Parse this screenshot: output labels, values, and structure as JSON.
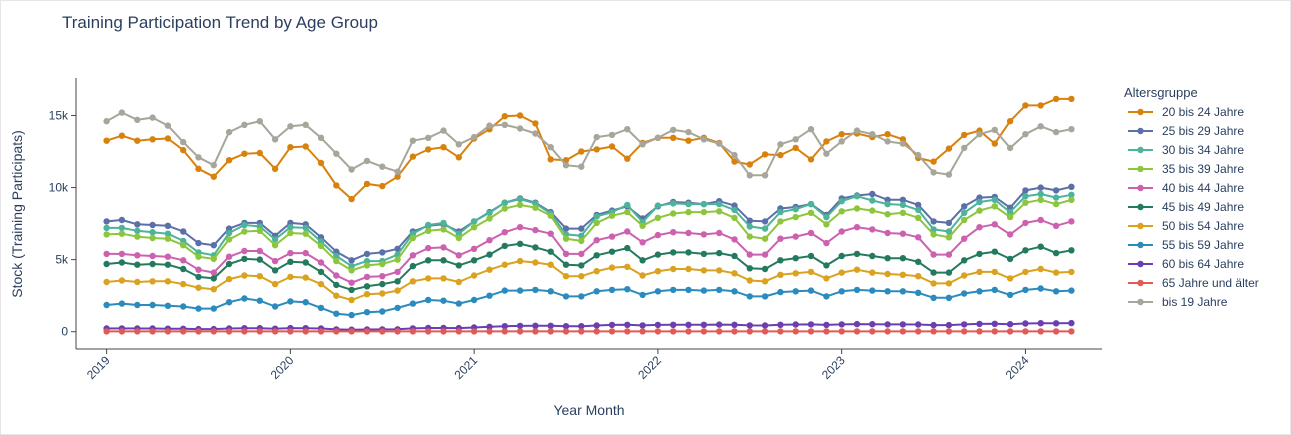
{
  "chart_data": {
    "type": "line",
    "title": "Training Participation Trend by Age Group",
    "xlabel": "Year Month",
    "ylabel": "Stock (Training Participats)",
    "ylim": [
      -1200,
      17600
    ],
    "yticks": [
      0,
      5000,
      10000,
      15000
    ],
    "ytick_labels": [
      "0",
      "5k",
      "10k",
      "15k"
    ],
    "xticks": [
      "2019-01",
      "2020-01",
      "2021-01",
      "2022-01",
      "2023-01",
      "2024-01"
    ],
    "xtick_labels": [
      "2019",
      "2020",
      "2021",
      "2022",
      "2023",
      "2024"
    ],
    "xrange": [
      "2018-11",
      "2024-06"
    ],
    "grid": false,
    "legend_title": "Altersgruppe",
    "legend_position": "right",
    "x": [
      "2019-01",
      "2019-02",
      "2019-03",
      "2019-04",
      "2019-05",
      "2019-06",
      "2019-07",
      "2019-08",
      "2019-09",
      "2019-10",
      "2019-11",
      "2019-12",
      "2020-01",
      "2020-02",
      "2020-03",
      "2020-04",
      "2020-05",
      "2020-06",
      "2020-07",
      "2020-08",
      "2020-09",
      "2020-10",
      "2020-11",
      "2020-12",
      "2021-01",
      "2021-02",
      "2021-03",
      "2021-04",
      "2021-05",
      "2021-06",
      "2021-07",
      "2021-08",
      "2021-09",
      "2021-10",
      "2021-11",
      "2021-12",
      "2022-01",
      "2022-02",
      "2022-03",
      "2022-04",
      "2022-05",
      "2022-06",
      "2022-07",
      "2022-08",
      "2022-09",
      "2022-10",
      "2022-11",
      "2022-12",
      "2023-01",
      "2023-02",
      "2023-03",
      "2023-04",
      "2023-05",
      "2023-06",
      "2023-07",
      "2023-08",
      "2023-09",
      "2023-10",
      "2023-11",
      "2023-12",
      "2024-01",
      "2024-02",
      "2024-03",
      "2024-04"
    ],
    "series": [
      {
        "name": "20 bis 24 Jahre",
        "color": "#d8820e",
        "values": [
          13250,
          13600,
          13250,
          13350,
          13400,
          12600,
          11300,
          10750,
          11900,
          12350,
          12400,
          11300,
          12800,
          12850,
          11700,
          10150,
          9200,
          10250,
          10100,
          10750,
          12150,
          12650,
          12800,
          12100,
          13400,
          14050,
          14950,
          15000,
          14450,
          11950,
          11900,
          12500,
          12650,
          12850,
          12000,
          13100,
          13450,
          13450,
          13250,
          13450,
          13100,
          11800,
          11600,
          12300,
          12250,
          12750,
          11950,
          13200,
          13700,
          13750,
          13500,
          13700,
          13350,
          12050,
          11800,
          12700,
          13650,
          13950,
          13050,
          14600,
          15700,
          15700,
          16150,
          16150
        ]
      },
      {
        "name": "25 bis 29 Jahre",
        "color": "#5b6fa8",
        "values": [
          7650,
          7750,
          7450,
          7400,
          7350,
          6950,
          6150,
          6000,
          7150,
          7550,
          7550,
          6650,
          7550,
          7450,
          6550,
          5550,
          4950,
          5400,
          5500,
          5750,
          6950,
          7350,
          7450,
          6950,
          7650,
          8300,
          8950,
          9250,
          8950,
          8300,
          7150,
          7150,
          8100,
          8400,
          8700,
          7850,
          8700,
          9000,
          8950,
          8850,
          9050,
          8750,
          7700,
          7650,
          8550,
          8650,
          8850,
          8100,
          9250,
          9450,
          9550,
          9150,
          9150,
          8800,
          7650,
          7550,
          8700,
          9300,
          9350,
          8600,
          9800,
          10000,
          9800,
          10050
        ]
      },
      {
        "name": "30 bis 34 Jahre",
        "color": "#4db39a",
        "values": [
          7200,
          7200,
          7000,
          6900,
          6800,
          6300,
          5500,
          5300,
          6850,
          7400,
          7300,
          6400,
          7250,
          7200,
          6250,
          5250,
          4550,
          4900,
          4900,
          5350,
          6800,
          7400,
          7550,
          6800,
          7650,
          8250,
          8950,
          9200,
          8900,
          8200,
          6750,
          6650,
          8000,
          8300,
          8800,
          7600,
          8750,
          8900,
          8850,
          8850,
          8850,
          8450,
          7300,
          7150,
          8300,
          8500,
          8850,
          7950,
          9050,
          9400,
          9100,
          8850,
          8800,
          8450,
          7100,
          6950,
          8250,
          9000,
          9150,
          8300,
          9400,
          9550,
          9300,
          9500
        ]
      },
      {
        "name": "35 bis 39 Jahre",
        "color": "#8cc63e",
        "values": [
          6750,
          6800,
          6600,
          6500,
          6450,
          6000,
          5200,
          5050,
          6400,
          6950,
          7000,
          6000,
          6850,
          6800,
          5950,
          4900,
          4250,
          4600,
          4700,
          5000,
          6500,
          7000,
          7100,
          6500,
          7250,
          7850,
          8550,
          8800,
          8600,
          8050,
          6450,
          6300,
          7550,
          8050,
          8300,
          7350,
          7900,
          8200,
          8300,
          8300,
          8350,
          7900,
          6600,
          6450,
          7650,
          7950,
          8250,
          7450,
          8350,
          8550,
          8400,
          8150,
          8250,
          7900,
          6750,
          6550,
          7750,
          8400,
          8700,
          7950,
          8950,
          9150,
          8850,
          9150
        ]
      },
      {
        "name": "40 bis 44 Jahre",
        "color": "#cc61b0",
        "values": [
          5400,
          5400,
          5300,
          5250,
          5200,
          4950,
          4300,
          4100,
          5200,
          5600,
          5600,
          4900,
          5450,
          5450,
          4800,
          3900,
          3400,
          3800,
          3850,
          4150,
          5300,
          5800,
          5850,
          5300,
          5750,
          6350,
          6900,
          7250,
          7050,
          6800,
          5400,
          5400,
          6350,
          6600,
          6950,
          6200,
          6700,
          6900,
          6850,
          6750,
          6850,
          6400,
          5350,
          5350,
          6450,
          6600,
          6850,
          6150,
          6950,
          7250,
          7100,
          6850,
          6800,
          6550,
          5350,
          5350,
          6450,
          7250,
          7450,
          6750,
          7550,
          7750,
          7350,
          7650
        ]
      },
      {
        "name": "45 bis 49 Jahre",
        "color": "#247a5e",
        "values": [
          4700,
          4800,
          4650,
          4700,
          4650,
          4350,
          3800,
          3700,
          4700,
          5050,
          5000,
          4250,
          4850,
          4800,
          4150,
          3250,
          2900,
          3150,
          3300,
          3500,
          4550,
          4950,
          4950,
          4600,
          4950,
          5350,
          5950,
          6100,
          5850,
          5550,
          4650,
          4600,
          5300,
          5550,
          5800,
          4950,
          5350,
          5500,
          5500,
          5400,
          5450,
          5250,
          4400,
          4350,
          4950,
          5100,
          5250,
          4600,
          5250,
          5400,
          5250,
          5100,
          5100,
          4850,
          4100,
          4100,
          4950,
          5400,
          5550,
          5050,
          5650,
          5900,
          5450,
          5650
        ]
      },
      {
        "name": "50 bis 54 Jahre",
        "color": "#daa21e",
        "values": [
          3450,
          3550,
          3450,
          3500,
          3500,
          3300,
          3050,
          2950,
          3650,
          3900,
          3850,
          3300,
          3800,
          3750,
          3300,
          2500,
          2200,
          2600,
          2650,
          2850,
          3500,
          3700,
          3700,
          3450,
          3900,
          4300,
          4650,
          4900,
          4800,
          4650,
          3850,
          3850,
          4200,
          4450,
          4500,
          3900,
          4200,
          4350,
          4350,
          4250,
          4250,
          4050,
          3550,
          3500,
          3950,
          4050,
          4150,
          3700,
          4100,
          4300,
          4100,
          4000,
          3950,
          3850,
          3350,
          3350,
          3900,
          4150,
          4150,
          3700,
          4150,
          4350,
          4100,
          4150
        ]
      },
      {
        "name": "55 bis 59 Jahre",
        "color": "#2b8bbd",
        "values": [
          1850,
          1950,
          1850,
          1850,
          1800,
          1750,
          1600,
          1600,
          2050,
          2300,
          2150,
          1750,
          2100,
          2050,
          1650,
          1250,
          1150,
          1350,
          1400,
          1650,
          1950,
          2200,
          2150,
          1950,
          2200,
          2500,
          2850,
          2850,
          2900,
          2800,
          2450,
          2450,
          2800,
          2900,
          2950,
          2550,
          2800,
          2900,
          2900,
          2850,
          2900,
          2800,
          2450,
          2450,
          2750,
          2800,
          2850,
          2450,
          2800,
          2900,
          2850,
          2800,
          2800,
          2700,
          2350,
          2350,
          2650,
          2800,
          2900,
          2550,
          2900,
          3000,
          2800,
          2850
        ]
      },
      {
        "name": "60 bis 64 Jahre",
        "color": "#6a3fb1",
        "values": [
          220,
          230,
          220,
          220,
          210,
          200,
          180,
          180,
          220,
          240,
          240,
          210,
          250,
          240,
          220,
          160,
          140,
          150,
          160,
          170,
          230,
          260,
          260,
          250,
          290,
          340,
          380,
          400,
          410,
          410,
          380,
          380,
          430,
          470,
          480,
          440,
          470,
          480,
          480,
          480,
          490,
          480,
          440,
          430,
          480,
          500,
          510,
          470,
          510,
          530,
          520,
          510,
          510,
          500,
          460,
          460,
          510,
          540,
          550,
          520,
          570,
          590,
          580,
          600
        ]
      },
      {
        "name": "65 Jahre und älter",
        "color": "#e15a55",
        "values": [
          20,
          20,
          20,
          20,
          20,
          20,
          20,
          20,
          20,
          20,
          20,
          20,
          20,
          20,
          20,
          20,
          20,
          20,
          20,
          20,
          20,
          20,
          20,
          20,
          20,
          20,
          20,
          20,
          20,
          20,
          20,
          20,
          20,
          20,
          20,
          20,
          20,
          20,
          20,
          20,
          20,
          20,
          20,
          20,
          20,
          20,
          20,
          20,
          20,
          20,
          20,
          20,
          20,
          20,
          20,
          20,
          20,
          20,
          20,
          20,
          20,
          20,
          20,
          20
        ]
      },
      {
        "name": "bis 19 Jahre",
        "color": "#a7a69a",
        "values": [
          14600,
          15200,
          14700,
          14850,
          14300,
          13150,
          12100,
          11550,
          13850,
          14350,
          14600,
          13350,
          14250,
          14350,
          13450,
          12350,
          11250,
          11850,
          11450,
          11100,
          13250,
          13450,
          13950,
          13000,
          13500,
          14300,
          14350,
          14100,
          13750,
          12800,
          11550,
          11450,
          13500,
          13650,
          14050,
          13000,
          13450,
          14000,
          13850,
          13350,
          13050,
          12250,
          10850,
          10850,
          13000,
          13350,
          14050,
          12350,
          13200,
          13950,
          13700,
          13200,
          13050,
          12250,
          11050,
          10900,
          12750,
          13700,
          14000,
          12750,
          13700,
          14250,
          13850,
          14050
        ]
      }
    ]
  }
}
